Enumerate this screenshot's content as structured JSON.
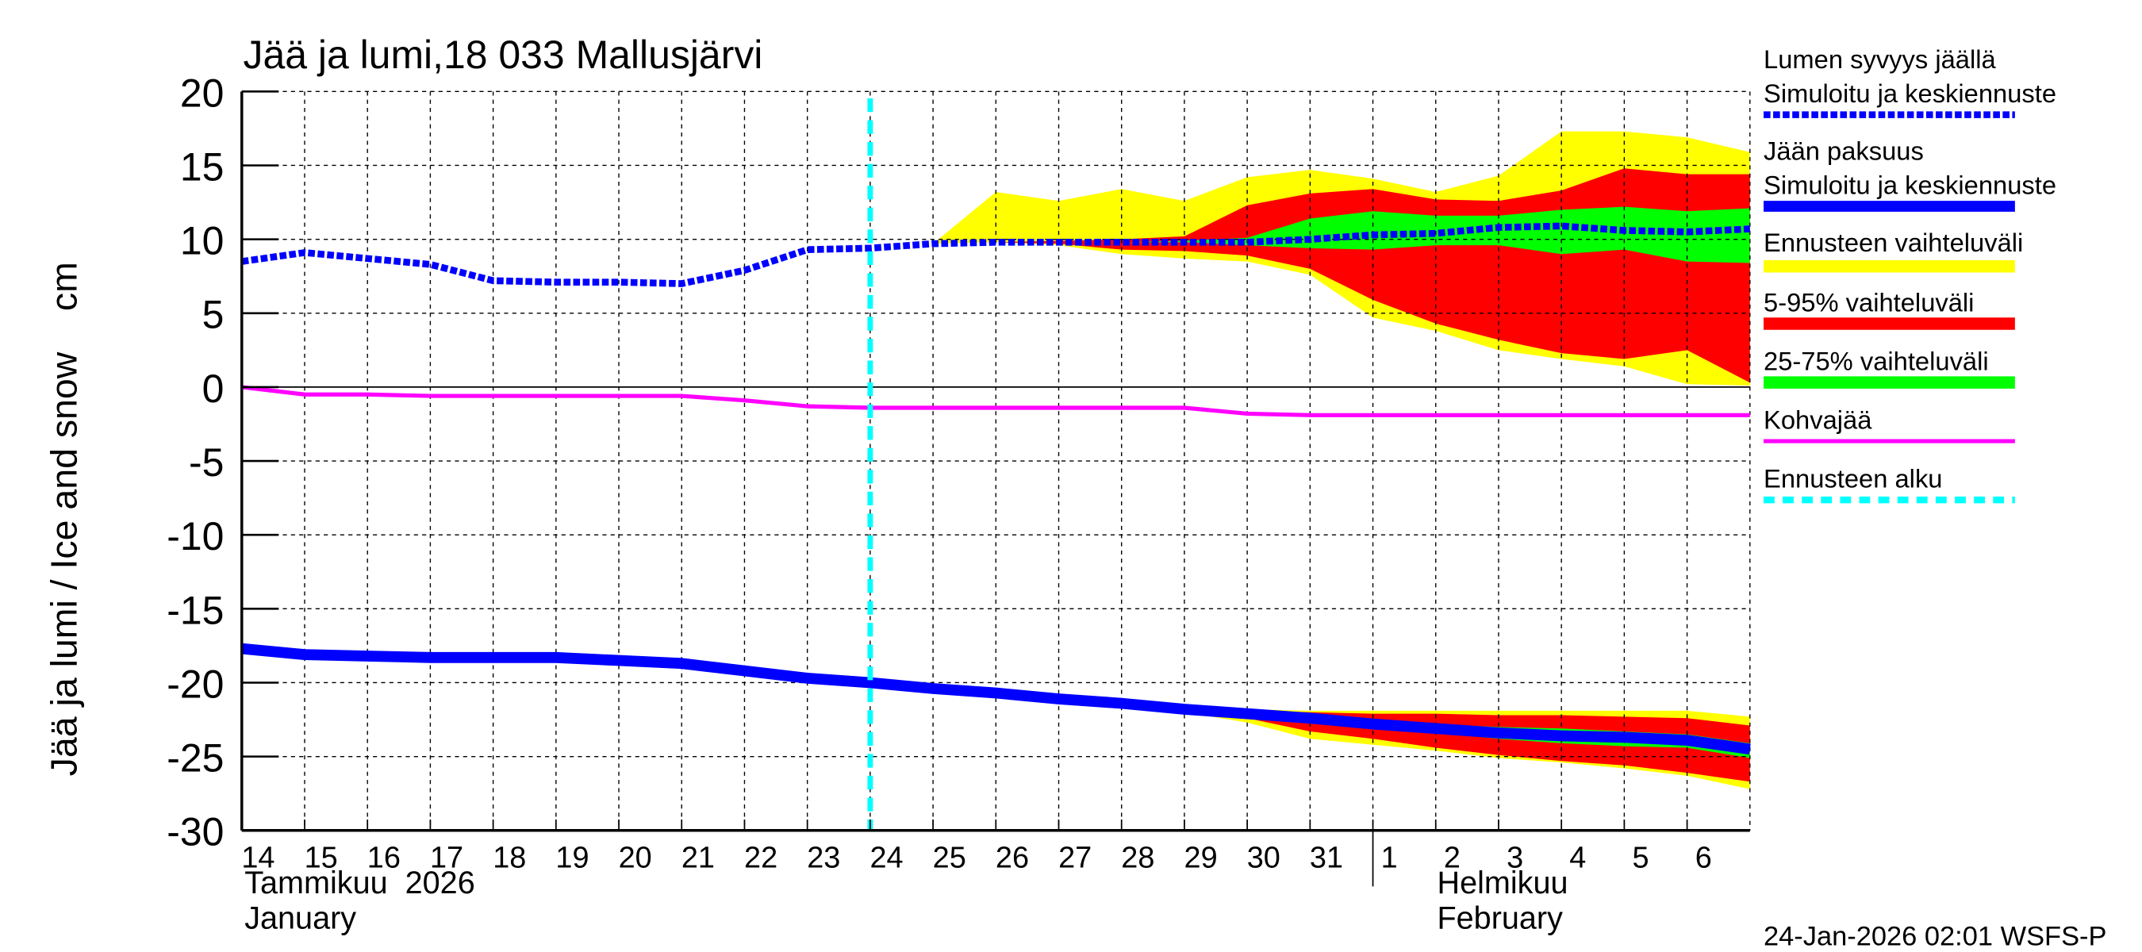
{
  "chart_data": {
    "type": "area",
    "title": "Jää ja lumi,18 033 Mallusjärvi",
    "ylabel": "Jää ja lumi / Ice and snow    cm",
    "ylim": [
      -30,
      20
    ],
    "yticks": [
      20,
      15,
      10,
      5,
      0,
      -5,
      -10,
      -15,
      -20,
      -25,
      -30
    ],
    "grid": true,
    "legend_placement": "right",
    "x_days": [
      14,
      15,
      16,
      17,
      18,
      19,
      20,
      21,
      22,
      23,
      24,
      25,
      26,
      27,
      28,
      29,
      30,
      31,
      32,
      33,
      34,
      35,
      36,
      37,
      38
    ],
    "xtick_labels": [
      "14",
      "15",
      "16",
      "17",
      "18",
      "19",
      "20",
      "21",
      "22",
      "23",
      "24",
      "25",
      "26",
      "27",
      "28",
      "29",
      "30",
      "31",
      "1",
      "2",
      "3",
      "4",
      "5",
      "6"
    ],
    "month_labels": {
      "jan_fi": "Tammikuu  2026",
      "jan_en": "January",
      "feb_fi": "Helmikuu",
      "feb_en": "February"
    },
    "forecast_start_day": 24,
    "snow": {
      "median": [
        8.5,
        9.1,
        8.7,
        8.3,
        7.2,
        7.1,
        7.1,
        7.0,
        7.9,
        9.3,
        9.4,
        9.7,
        9.8,
        9.8,
        9.8,
        9.8,
        9.8,
        10.0,
        10.3,
        10.4,
        10.8,
        10.9,
        10.6,
        10.5,
        10.7
      ],
      "band_days": [
        25,
        26,
        27,
        28,
        29,
        30,
        31,
        32,
        33,
        34,
        35,
        36,
        37,
        38
      ],
      "yellow_upper": [
        9.7,
        13.2,
        12.6,
        13.4,
        12.6,
        14.2,
        14.7,
        14.1,
        13.2,
        14.3,
        17.3,
        17.3,
        16.9,
        15.9
      ],
      "yellow_lower": [
        9.7,
        9.8,
        9.6,
        9.0,
        8.7,
        8.5,
        7.6,
        4.7,
        3.8,
        2.5,
        1.9,
        1.4,
        0.2,
        0.1
      ],
      "red_upper": [
        9.7,
        9.8,
        9.9,
        10.0,
        10.2,
        12.3,
        13.1,
        13.4,
        12.7,
        12.6,
        13.3,
        14.8,
        14.4,
        14.4
      ],
      "red_lower": [
        9.7,
        9.8,
        9.7,
        9.3,
        9.2,
        8.9,
        8.0,
        5.9,
        4.3,
        3.2,
        2.3,
        1.9,
        2.5,
        0.3
      ],
      "green_upper": [
        9.7,
        9.8,
        9.8,
        9.8,
        9.9,
        10.1,
        11.4,
        11.9,
        11.6,
        11.6,
        12.0,
        12.2,
        11.9,
        12.1
      ],
      "green_lower": [
        9.7,
        9.8,
        9.8,
        9.8,
        9.8,
        9.6,
        9.4,
        9.3,
        9.6,
        9.6,
        9.0,
        9.3,
        8.5,
        8.4
      ]
    },
    "slush_ice": [
      0,
      -0.5,
      -0.5,
      -0.6,
      -0.6,
      -0.6,
      -0.6,
      -0.6,
      -0.9,
      -1.3,
      -1.4,
      -1.4,
      -1.4,
      -1.4,
      -1.4,
      -1.4,
      -1.8,
      -1.9,
      -1.9,
      -1.9,
      -1.9,
      -1.9,
      -1.9,
      -1.9,
      -1.9
    ],
    "ice": {
      "median": [
        -17.7,
        -18.1,
        -18.2,
        -18.3,
        -18.3,
        -18.3,
        -18.5,
        -18.7,
        -19.2,
        -19.7,
        -20.0,
        -20.4,
        -20.7,
        -21.1,
        -21.4,
        -21.8,
        -22.1,
        -22.4,
        -22.8,
        -23.1,
        -23.4,
        -23.6,
        -23.7,
        -23.9,
        -24.5
      ],
      "band_days": [
        25,
        26,
        27,
        28,
        29,
        30,
        31,
        32,
        33,
        34,
        35,
        36,
        37,
        38
      ],
      "yellow_upper": [
        -20.3,
        -20.6,
        -21.0,
        -21.3,
        -21.6,
        -21.8,
        -21.9,
        -21.9,
        -21.9,
        -21.9,
        -21.9,
        -21.9,
        -21.9,
        -22.3
      ],
      "yellow_lower": [
        -20.4,
        -20.7,
        -21.2,
        -21.6,
        -22.0,
        -22.7,
        -23.8,
        -24.2,
        -24.6,
        -25.1,
        -25.4,
        -25.8,
        -26.3,
        -27.2
      ],
      "red_upper": [
        -20.4,
        -20.7,
        -21.1,
        -21.4,
        -21.7,
        -21.9,
        -22.0,
        -22.1,
        -22.1,
        -22.2,
        -22.2,
        -22.3,
        -22.4,
        -22.9
      ],
      "red_lower": [
        -20.4,
        -20.7,
        -21.1,
        -21.5,
        -21.9,
        -22.4,
        -23.3,
        -23.8,
        -24.4,
        -24.9,
        -25.3,
        -25.6,
        -26.1,
        -26.7
      ],
      "green_upper": [
        -20.4,
        -20.7,
        -21.1,
        -21.4,
        -21.8,
        -22.0,
        -22.2,
        -22.5,
        -22.8,
        -23.0,
        -23.1,
        -23.3,
        -23.5,
        -24.1
      ],
      "green_lower": [
        -20.4,
        -20.7,
        -21.1,
        -21.4,
        -21.8,
        -22.2,
        -22.6,
        -23.1,
        -23.4,
        -23.8,
        -24.1,
        -24.3,
        -24.4,
        -25.1
      ]
    },
    "legend": [
      {
        "label": "Lumen syvyys jäällä",
        "label2": "Simuloitu ja keskiennuste",
        "color": "#0000ff",
        "style": "dashed-thick"
      },
      {
        "label": "Jään paksuus",
        "label2": "Simuloitu ja keskiennuste",
        "color": "#0000ff",
        "style": "solid-thick"
      },
      {
        "label": "Ennusteen vaihteluväli",
        "color": "#ffff00",
        "style": "bar"
      },
      {
        "label": "5-95% vaihteluväli",
        "color": "#ff0000",
        "style": "bar"
      },
      {
        "label": "25-75% vaihteluväli",
        "color": "#00ff00",
        "style": "bar"
      },
      {
        "label": "Kohvajää",
        "color": "#ff00ff",
        "style": "solid"
      },
      {
        "label": "Ennusteen alku",
        "color": "#00ffff",
        "style": "dashed"
      }
    ],
    "footer": "24-Jan-2026 02:01 WSFS-P"
  }
}
